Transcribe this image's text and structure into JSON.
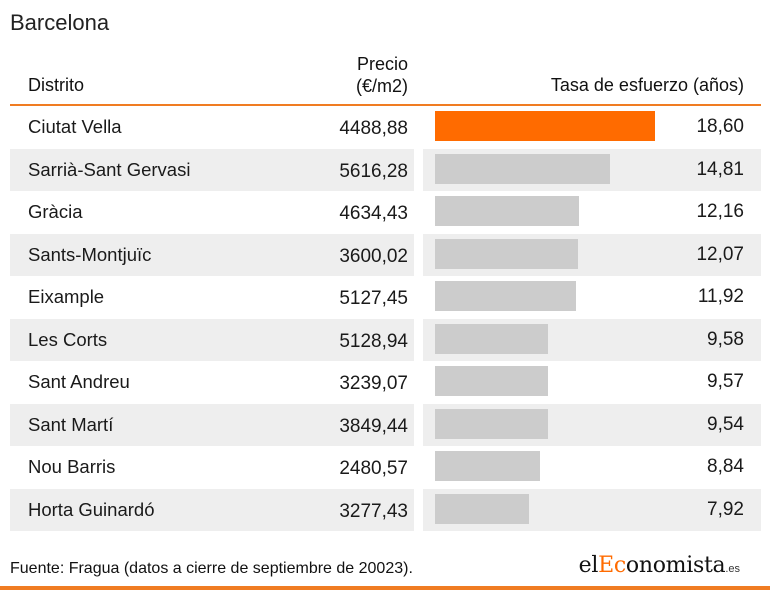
{
  "title": "Barcelona",
  "headers": {
    "district": "Distrito",
    "price_line1": "Precio",
    "price_line2": "(€/m2)",
    "rate": "Tasa de esfuerzo (años)"
  },
  "chart_data": {
    "type": "bar",
    "title": "Barcelona",
    "xlabel": "Tasa de esfuerzo (años)",
    "ylabel": "",
    "xlim": [
      0,
      18.6
    ],
    "categories": [
      "Ciutat Vella",
      "Sarrià-Sant Gervasi",
      "Gràcia",
      "Sants-Montjuïc",
      "Eixample",
      "Les Corts",
      "Sant Andreu",
      "Sant Martí",
      "Nou Barris",
      "Horta Guinardó"
    ],
    "prices": [
      "4488,88",
      "5616,28",
      "4634,43",
      "3600,02",
      "5127,45",
      "5128,94",
      "3239,07",
      "3849,44",
      "2480,57",
      "3277,43"
    ],
    "values": [
      18.6,
      14.81,
      12.16,
      12.07,
      11.92,
      9.58,
      9.57,
      9.54,
      8.84,
      7.92
    ],
    "value_labels": [
      "18,60",
      "14,81",
      "12,16",
      "12,07",
      "11,92",
      "9,58",
      "9,57",
      "9,54",
      "8,84",
      "7,92"
    ],
    "highlight_index": 0,
    "colors": {
      "highlight": "#ff6b00",
      "bar": "#cccccc",
      "row_shade": "#eeeeee",
      "accent_line": "#f07c22"
    }
  },
  "footer": {
    "source": "Fuente: Fragua (datos a cierre de septiembre de 20023).",
    "logo_el": "el",
    "logo_ec": "Ec",
    "logo_rest": "onomista",
    "logo_tld": ".es"
  }
}
